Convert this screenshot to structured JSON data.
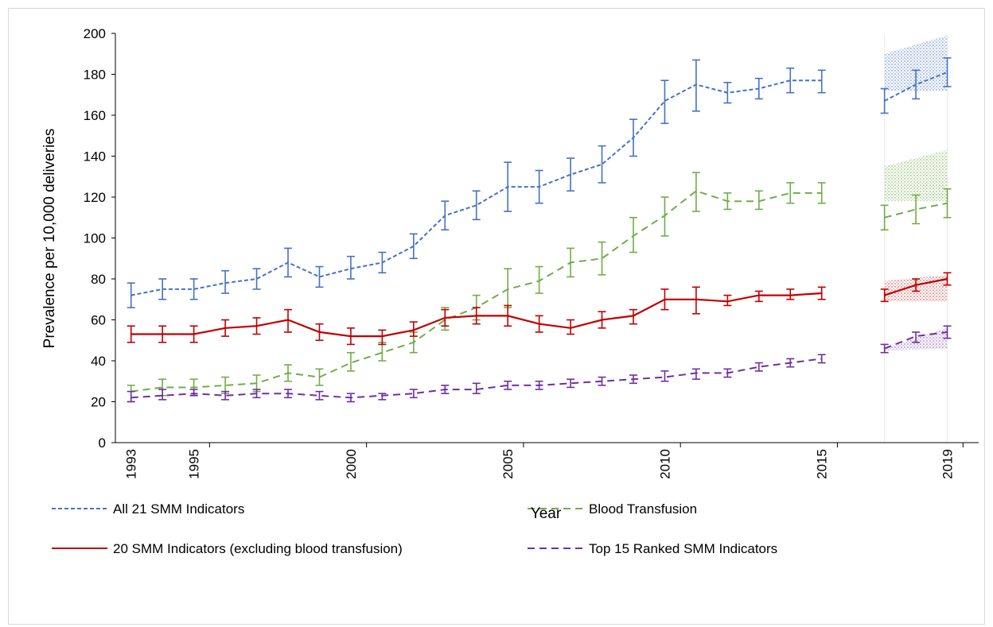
{
  "chart_data": {
    "type": "line",
    "title": "",
    "xlabel": "Year",
    "ylabel": "Prevalence per 10,000 deliveries",
    "ylim": [
      0,
      200
    ],
    "yticks": [
      0,
      20,
      40,
      60,
      80,
      100,
      120,
      140,
      160,
      180,
      200
    ],
    "xticks": [
      "1993",
      "1995",
      "2000",
      "2005",
      "2010",
      "2015",
      "2019"
    ],
    "grid": false,
    "legend_position": "bottom",
    "series": [
      {
        "name": "All 21 SMM Indicators",
        "color": "#4472C4",
        "dash": "short",
        "values": [
          {
            "year": 1993,
            "y": 72,
            "lo": 66,
            "hi": 78
          },
          {
            "year": 1994,
            "y": 75,
            "lo": 70,
            "hi": 80
          },
          {
            "year": 1995,
            "y": 75,
            "lo": 70,
            "hi": 80
          },
          {
            "year": 1996,
            "y": 78,
            "lo": 73,
            "hi": 84
          },
          {
            "year": 1997,
            "y": 80,
            "lo": 75,
            "hi": 85
          },
          {
            "year": 1998,
            "y": 88,
            "lo": 81,
            "hi": 95
          },
          {
            "year": 1999,
            "y": 81,
            "lo": 76,
            "hi": 86
          },
          {
            "year": 2000,
            "y": 85,
            "lo": 80,
            "hi": 91
          },
          {
            "year": 2001,
            "y": 88,
            "lo": 83,
            "hi": 93
          },
          {
            "year": 2002,
            "y": 96,
            "lo": 90,
            "hi": 102
          },
          {
            "year": 2003,
            "y": 111,
            "lo": 104,
            "hi": 118
          },
          {
            "year": 2004,
            "y": 116,
            "lo": 109,
            "hi": 123
          },
          {
            "year": 2005,
            "y": 125,
            "lo": 113,
            "hi": 137
          },
          {
            "year": 2006,
            "y": 125,
            "lo": 117,
            "hi": 133
          },
          {
            "year": 2007,
            "y": 131,
            "lo": 123,
            "hi": 139
          },
          {
            "year": 2008,
            "y": 136,
            "lo": 127,
            "hi": 145
          },
          {
            "year": 2009,
            "y": 149,
            "lo": 140,
            "hi": 158
          },
          {
            "year": 2010,
            "y": 167,
            "lo": 156,
            "hi": 177
          },
          {
            "year": 2011,
            "y": 175,
            "lo": 162,
            "hi": 187
          },
          {
            "year": 2012,
            "y": 171,
            "lo": 166,
            "hi": 176
          },
          {
            "year": 2013,
            "y": 173,
            "lo": 168,
            "hi": 178
          },
          {
            "year": 2014,
            "y": 177,
            "lo": 171,
            "hi": 183
          },
          {
            "year": 2015,
            "y": 177,
            "lo": 171,
            "hi": 182
          },
          {
            "year": 2017,
            "y": 167,
            "lo": 161,
            "hi": 173
          },
          {
            "year": 2018,
            "y": 175,
            "lo": 168,
            "hi": 182
          },
          {
            "year": 2019,
            "y": 181,
            "lo": 174,
            "hi": 188
          }
        ],
        "band": [
          {
            "year": 2017,
            "lo": 172,
            "hi": 190
          },
          {
            "year": 2019,
            "lo": 172,
            "hi": 199
          }
        ]
      },
      {
        "name": "Blood Transfusion",
        "color": "#70AD47",
        "dash": "long",
        "values": [
          {
            "year": 1993,
            "y": 25,
            "lo": 20,
            "hi": 28
          },
          {
            "year": 1994,
            "y": 27,
            "lo": 23,
            "hi": 31
          },
          {
            "year": 1995,
            "y": 27,
            "lo": 23,
            "hi": 31
          },
          {
            "year": 1996,
            "y": 28,
            "lo": 24,
            "hi": 32
          },
          {
            "year": 1997,
            "y": 29,
            "lo": 25,
            "hi": 33
          },
          {
            "year": 1998,
            "y": 34,
            "lo": 30,
            "hi": 38
          },
          {
            "year": 1999,
            "y": 32,
            "lo": 28,
            "hi": 36
          },
          {
            "year": 2000,
            "y": 39,
            "lo": 35,
            "hi": 44
          },
          {
            "year": 2001,
            "y": 44,
            "lo": 40,
            "hi": 49
          },
          {
            "year": 2002,
            "y": 49,
            "lo": 44,
            "hi": 54
          },
          {
            "year": 2003,
            "y": 60,
            "lo": 55,
            "hi": 66
          },
          {
            "year": 2004,
            "y": 66,
            "lo": 60,
            "hi": 72
          },
          {
            "year": 2005,
            "y": 75,
            "lo": 66,
            "hi": 85
          },
          {
            "year": 2006,
            "y": 79,
            "lo": 73,
            "hi": 86
          },
          {
            "year": 2007,
            "y": 88,
            "lo": 81,
            "hi": 95
          },
          {
            "year": 2008,
            "y": 90,
            "lo": 82,
            "hi": 98
          },
          {
            "year": 2009,
            "y": 101,
            "lo": 93,
            "hi": 110
          },
          {
            "year": 2010,
            "y": 111,
            "lo": 101,
            "hi": 120
          },
          {
            "year": 2011,
            "y": 123,
            "lo": 113,
            "hi": 132
          },
          {
            "year": 2012,
            "y": 118,
            "lo": 114,
            "hi": 122
          },
          {
            "year": 2013,
            "y": 118,
            "lo": 114,
            "hi": 123
          },
          {
            "year": 2014,
            "y": 122,
            "lo": 117,
            "hi": 127
          },
          {
            "year": 2015,
            "y": 122,
            "lo": 117,
            "hi": 127
          },
          {
            "year": 2017,
            "y": 110,
            "lo": 104,
            "hi": 116
          },
          {
            "year": 2018,
            "y": 114,
            "lo": 107,
            "hi": 121
          },
          {
            "year": 2019,
            "y": 117,
            "lo": 110,
            "hi": 124
          }
        ],
        "band": [
          {
            "year": 2017,
            "lo": 118,
            "hi": 135
          },
          {
            "year": 2019,
            "lo": 118,
            "hi": 143
          }
        ]
      },
      {
        "name": "20 SMM Indicators (excluding blood transfusion)",
        "color": "#C00000",
        "dash": "solid",
        "values": [
          {
            "year": 1993,
            "y": 53,
            "lo": 49,
            "hi": 57
          },
          {
            "year": 1994,
            "y": 53,
            "lo": 49,
            "hi": 57
          },
          {
            "year": 1995,
            "y": 53,
            "lo": 49,
            "hi": 57
          },
          {
            "year": 1996,
            "y": 56,
            "lo": 52,
            "hi": 60
          },
          {
            "year": 1997,
            "y": 57,
            "lo": 53,
            "hi": 61
          },
          {
            "year": 1998,
            "y": 60,
            "lo": 54,
            "hi": 65
          },
          {
            "year": 1999,
            "y": 54,
            "lo": 50,
            "hi": 58
          },
          {
            "year": 2000,
            "y": 52,
            "lo": 48,
            "hi": 56
          },
          {
            "year": 2001,
            "y": 52,
            "lo": 48,
            "hi": 55
          },
          {
            "year": 2002,
            "y": 55,
            "lo": 52,
            "hi": 59
          },
          {
            "year": 2003,
            "y": 61,
            "lo": 57,
            "hi": 65
          },
          {
            "year": 2004,
            "y": 62,
            "lo": 58,
            "hi": 66
          },
          {
            "year": 2005,
            "y": 62,
            "lo": 57,
            "hi": 67
          },
          {
            "year": 2006,
            "y": 58,
            "lo": 54,
            "hi": 62
          },
          {
            "year": 2007,
            "y": 56,
            "lo": 53,
            "hi": 60
          },
          {
            "year": 2008,
            "y": 60,
            "lo": 56,
            "hi": 64
          },
          {
            "year": 2009,
            "y": 62,
            "lo": 58,
            "hi": 65
          },
          {
            "year": 2010,
            "y": 70,
            "lo": 65,
            "hi": 75
          },
          {
            "year": 2011,
            "y": 70,
            "lo": 63,
            "hi": 76
          },
          {
            "year": 2012,
            "y": 69,
            "lo": 67,
            "hi": 72
          },
          {
            "year": 2013,
            "y": 72,
            "lo": 69,
            "hi": 74
          },
          {
            "year": 2014,
            "y": 72,
            "lo": 70,
            "hi": 75
          },
          {
            "year": 2015,
            "y": 73,
            "lo": 70,
            "hi": 76
          },
          {
            "year": 2017,
            "y": 72,
            "lo": 69,
            "hi": 75
          },
          {
            "year": 2018,
            "y": 77,
            "lo": 74,
            "hi": 80
          },
          {
            "year": 2019,
            "y": 80,
            "lo": 77,
            "hi": 83
          }
        ],
        "band": [
          {
            "year": 2017,
            "lo": 69,
            "hi": 79
          },
          {
            "year": 2019,
            "lo": 69,
            "hi": 82
          }
        ]
      },
      {
        "name": "Top 15 Ranked SMM Indicators",
        "color": "#7030A0",
        "dash": "long",
        "values": [
          {
            "year": 1993,
            "y": 22,
            "lo": 20,
            "hi": 25
          },
          {
            "year": 1994,
            "y": 23,
            "lo": 21,
            "hi": 26
          },
          {
            "year": 1995,
            "y": 24,
            "lo": 23,
            "hi": 26
          },
          {
            "year": 1996,
            "y": 23,
            "lo": 21,
            "hi": 25
          },
          {
            "year": 1997,
            "y": 24,
            "lo": 22,
            "hi": 26
          },
          {
            "year": 1998,
            "y": 24,
            "lo": 22,
            "hi": 26
          },
          {
            "year": 1999,
            "y": 23,
            "lo": 21,
            "hi": 25
          },
          {
            "year": 2000,
            "y": 22,
            "lo": 20,
            "hi": 24
          },
          {
            "year": 2001,
            "y": 23,
            "lo": 21,
            "hi": 24
          },
          {
            "year": 2002,
            "y": 24,
            "lo": 22,
            "hi": 26
          },
          {
            "year": 2003,
            "y": 26,
            "lo": 24,
            "hi": 28
          },
          {
            "year": 2004,
            "y": 26,
            "lo": 24,
            "hi": 29
          },
          {
            "year": 2005,
            "y": 28,
            "lo": 26,
            "hi": 30
          },
          {
            "year": 2006,
            "y": 28,
            "lo": 26,
            "hi": 30
          },
          {
            "year": 2007,
            "y": 29,
            "lo": 27,
            "hi": 31
          },
          {
            "year": 2008,
            "y": 30,
            "lo": 28,
            "hi": 32
          },
          {
            "year": 2009,
            "y": 31,
            "lo": 29,
            "hi": 33
          },
          {
            "year": 2010,
            "y": 32,
            "lo": 30,
            "hi": 35
          },
          {
            "year": 2011,
            "y": 34,
            "lo": 31,
            "hi": 36
          },
          {
            "year": 2012,
            "y": 34,
            "lo": 32,
            "hi": 36
          },
          {
            "year": 2013,
            "y": 37,
            "lo": 35,
            "hi": 39
          },
          {
            "year": 2014,
            "y": 39,
            "lo": 37,
            "hi": 41
          },
          {
            "year": 2015,
            "y": 41,
            "lo": 39,
            "hi": 43
          },
          {
            "year": 2017,
            "y": 46,
            "lo": 44,
            "hi": 48
          },
          {
            "year": 2018,
            "y": 52,
            "lo": 49,
            "hi": 54
          },
          {
            "year": 2019,
            "y": 54,
            "lo": 51,
            "hi": 57
          }
        ],
        "band": [
          {
            "year": 2017,
            "lo": 45,
            "hi": 46
          },
          {
            "year": 2019,
            "lo": 46,
            "hi": 56
          }
        ]
      }
    ],
    "legend": [
      {
        "label": "All 21 SMM Indicators",
        "series": 0
      },
      {
        "label": "Blood Transfusion",
        "series": 1
      },
      {
        "label": "20 SMM Indicators (excluding blood transfusion)",
        "series": 2
      },
      {
        "label": "Top 15 Ranked SMM Indicators",
        "series": 3
      }
    ]
  }
}
